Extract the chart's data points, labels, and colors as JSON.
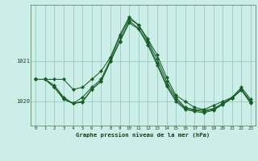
{
  "title": "Graphe pression niveau de la mer (hPa)",
  "bg_color": "#cceee8",
  "grid_color": "#99ccbb",
  "line_color": "#1a5c2a",
  "xlim_min": -0.5,
  "xlim_max": 23.5,
  "ylim_min": 1019.4,
  "ylim_max": 1022.4,
  "yticks": [
    1020,
    1021
  ],
  "xticks": [
    0,
    1,
    2,
    3,
    4,
    5,
    6,
    7,
    8,
    9,
    10,
    11,
    12,
    13,
    14,
    15,
    16,
    17,
    18,
    19,
    20,
    21,
    22,
    23
  ],
  "series": [
    [
      1020.55,
      1020.55,
      1020.55,
      1020.55,
      1020.3,
      1020.35,
      1020.55,
      1020.75,
      1021.1,
      1021.65,
      1022.1,
      1021.9,
      1021.55,
      1021.15,
      1020.6,
      1020.15,
      1020.0,
      1019.85,
      1019.8,
      1019.9,
      1020.0,
      1020.1,
      1020.35,
      1020.05
    ],
    [
      1020.55,
      1020.55,
      1020.4,
      1020.1,
      1019.95,
      1020.1,
      1020.35,
      1020.55,
      1021.05,
      1021.6,
      1022.05,
      1021.9,
      1021.5,
      1021.05,
      1020.5,
      1020.1,
      1019.85,
      1019.8,
      1019.78,
      1019.82,
      1019.95,
      1020.1,
      1020.3,
      1020.0
    ],
    [
      1020.55,
      1020.55,
      1020.35,
      1020.05,
      1019.95,
      1020.0,
      1020.3,
      1020.5,
      1021.0,
      1021.5,
      1022.0,
      1021.82,
      1021.45,
      1020.95,
      1020.42,
      1020.05,
      1019.82,
      1019.78,
      1019.75,
      1019.8,
      1019.95,
      1020.08,
      1020.3,
      1019.98
    ],
    [
      1020.55,
      1020.55,
      1020.35,
      1020.08,
      1019.95,
      1019.98,
      1020.3,
      1020.5,
      1021.0,
      1021.48,
      1021.95,
      1021.8,
      1021.4,
      1020.9,
      1020.38,
      1020.0,
      1019.8,
      1019.75,
      1019.72,
      1019.78,
      1019.92,
      1020.08,
      1020.28,
      1019.95
    ]
  ]
}
